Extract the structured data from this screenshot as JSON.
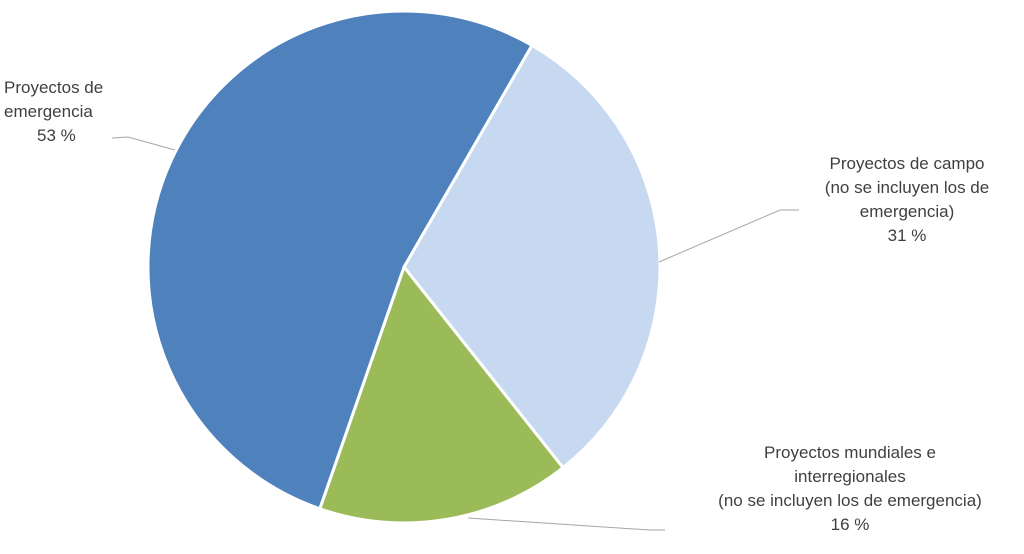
{
  "chart_data": {
    "type": "pie",
    "slices": [
      {
        "label_lines": [
          "Proyectos de",
          "emergencia"
        ],
        "percent_label": "53 %",
        "value": 53,
        "color": "#4F81BD"
      },
      {
        "label_lines": [
          "Proyectos de campo",
          "(no se incluyen los de",
          "emergencia)"
        ],
        "percent_label": "31 %",
        "value": 31,
        "color": "#C6D9F1"
      },
      {
        "label_lines": [
          "Proyectos mundiales e",
          "interregionales",
          "(no se incluyen los de emergencia)"
        ],
        "percent_label": "16 %",
        "value": 16,
        "color": "#9BBB59"
      }
    ],
    "legend": "none"
  }
}
